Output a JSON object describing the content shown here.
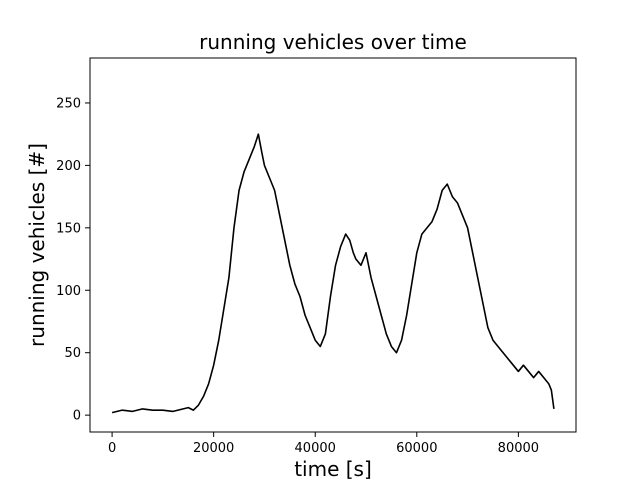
{
  "chart_data": {
    "type": "line",
    "title": "running vehicles over time",
    "xlabel": "time [s]",
    "ylabel": "running vehicles [#]",
    "xlim": [
      -4350,
      91350
    ],
    "ylim": [
      -13.5,
      286
    ],
    "xticks": [
      0,
      20000,
      40000,
      60000,
      80000
    ],
    "yticks": [
      0,
      50,
      100,
      150,
      200,
      250
    ],
    "grid": false,
    "line_color": "#000000",
    "series": [
      {
        "x": [
          0,
          2000,
          4000,
          6000,
          8000,
          10000,
          12000,
          14000,
          15000,
          16000,
          17000,
          18000,
          19000,
          20000,
          21000,
          22000,
          23000,
          24000,
          25000,
          26000,
          27000,
          28000,
          28800,
          29500,
          30000,
          31000,
          32000,
          33000,
          34000,
          35000,
          36000,
          37000,
          38000,
          39000,
          40000,
          41000,
          42000,
          43000,
          44000,
          45000,
          46000,
          46800,
          47500,
          48000,
          49000,
          50000,
          51000,
          52000,
          53000,
          54000,
          55000,
          56000,
          57000,
          58000,
          59000,
          60000,
          61000,
          62000,
          63000,
          64000,
          65000,
          66000,
          67000,
          68000,
          69000,
          70000,
          71000,
          72000,
          73000,
          74000,
          75000,
          76000,
          77000,
          78000,
          79000,
          80000,
          81000,
          82000,
          83000,
          84000,
          85000,
          86000,
          86500,
          87000
        ],
        "values": [
          2,
          4,
          3,
          5,
          4,
          4,
          3,
          5,
          6,
          4,
          8,
          15,
          25,
          40,
          60,
          85,
          110,
          150,
          180,
          195,
          205,
          215,
          225,
          210,
          200,
          190,
          180,
          160,
          140,
          120,
          105,
          95,
          80,
          70,
          60,
          55,
          65,
          95,
          120,
          135,
          145,
          140,
          130,
          125,
          120,
          130,
          110,
          95,
          80,
          65,
          55,
          50,
          60,
          80,
          105,
          130,
          145,
          150,
          155,
          165,
          180,
          185,
          175,
          170,
          160,
          150,
          130,
          110,
          90,
          70,
          60,
          55,
          50,
          45,
          40,
          35,
          40,
          35,
          30,
          35,
          30,
          25,
          20,
          5
        ]
      }
    ]
  }
}
